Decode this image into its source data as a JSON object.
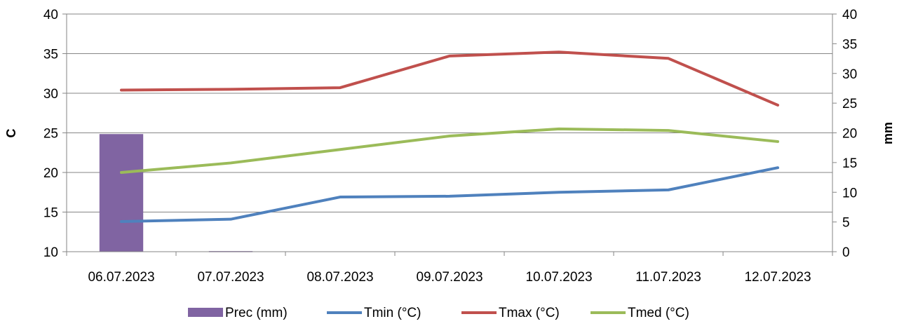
{
  "chart_data": {
    "type": "bar",
    "categories": [
      "06.07.2023",
      "07.07.2023",
      "08.07.2023",
      "09.07.2023",
      "10.07.2023",
      "11.07.2023",
      "12.07.2023"
    ],
    "y_left": {
      "label": "C",
      "ylim": [
        10,
        40
      ],
      "ticks": [
        10,
        15,
        20,
        25,
        30,
        35,
        40
      ]
    },
    "y_right": {
      "label": "mm",
      "ylim": [
        0,
        40
      ],
      "ticks": [
        0,
        5,
        10,
        15,
        20,
        25,
        30,
        35,
        40
      ]
    },
    "grid": true,
    "legend_position": "bottom",
    "series": [
      {
        "name": "Prec (mm)",
        "kind": "bar",
        "axis": "right",
        "color": "#8064A2",
        "values": [
          19.8,
          0.1,
          0,
          0,
          0,
          0,
          0
        ]
      },
      {
        "name": "Tmin (°C)",
        "kind": "line",
        "axis": "left",
        "color": "#4F81BD",
        "values": [
          13.8,
          14.1,
          16.9,
          17.0,
          17.5,
          17.8,
          20.6
        ]
      },
      {
        "name": "Tmax (°C)",
        "kind": "line",
        "axis": "left",
        "color": "#C0504D",
        "values": [
          30.4,
          30.5,
          30.7,
          34.7,
          35.2,
          34.4,
          28.5
        ]
      },
      {
        "name": "Tmed (°C)",
        "kind": "line",
        "axis": "left",
        "color": "#9BBB59",
        "values": [
          20.0,
          21.2,
          22.9,
          24.6,
          25.5,
          25.3,
          23.9
        ]
      }
    ]
  }
}
